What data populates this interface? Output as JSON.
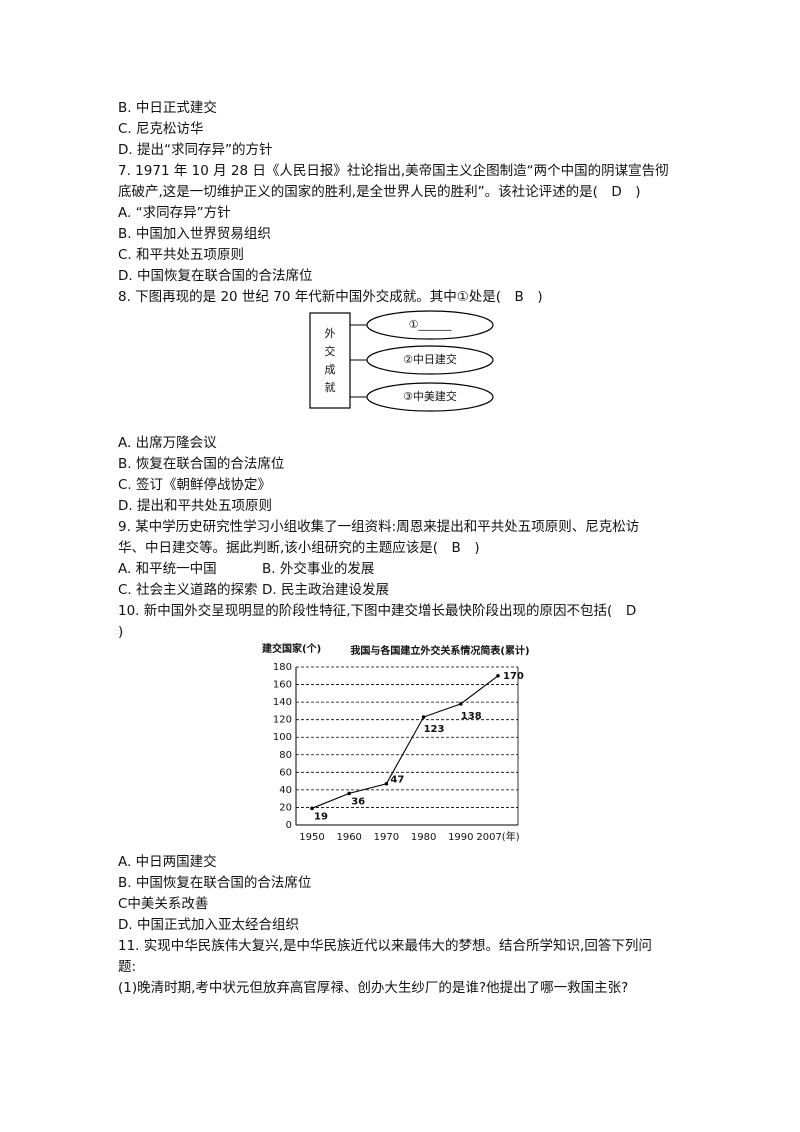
{
  "lines1": [
    [
      "B. 中日正式建交"
    ],
    [
      "C. 尼克松访华"
    ],
    [
      "D. 提出“求同存异”的方针"
    ],
    [
      "7. 1971 年 10 月 28 日《人民日报》社论指出,美帝国主义企图制造“两个中国的阴谋宣告彻"
    ],
    [
      "底破产,这是一切维护正义的国家的胜利,是全世界人民的胜利”。该社论评述的是(　D　)"
    ],
    [
      "A. “求同存异”方针"
    ],
    [
      "B. 中国加入世界贸易组织"
    ],
    [
      "C. 和平共处五项原则"
    ],
    [
      "D. 中国恢复在联合国的合法席位"
    ],
    [
      "8. 下图再现的是 20 世纪 70 年代新中国外交成就。其中①处是(　B　)"
    ]
  ],
  "diagram": {
    "root": "外交成就",
    "nodes": [
      "①______",
      "②中日建交",
      "③中美建交"
    ]
  },
  "lines2": [
    [
      "A. 出席万隆会议"
    ],
    [
      "B. 恢复在联合国的合法席位"
    ],
    [
      "C. 签订《朝鲜停战协定》"
    ],
    [
      "D. 提出和平共处五项原则"
    ],
    [
      "9. 某中学历史研究性学习小组收集了一组资料:周恩来提出和平共处五项原则、尼克松访"
    ],
    [
      "华、中日建交等。据此判断,该小组研究的主题应该是(　B　)"
    ],
    [
      "A. 和平统一中国",
      "B. 外交事业的发展"
    ],
    [
      "C. 社会主义道路的探索",
      "D. 民主政治建设发展"
    ],
    [
      "10. 新中国外交呈现明显的阶段性特征,下图中建交增长最快阶段出现的原因不包括(　D"
    ],
    [
      ")"
    ]
  ],
  "chart_data": {
    "type": "line",
    "title": "我国与各国建立外交关系情况简表(累计)",
    "y_label": "建交国家(个)",
    "categories": [
      "1950",
      "1960",
      "1970",
      "1980",
      "1990",
      "2007(年)"
    ],
    "values": [
      19,
      36,
      47,
      123,
      138,
      170
    ],
    "color": "#000000",
    "ylim": [
      0,
      180
    ],
    "yticks": [
      0,
      20,
      40,
      60,
      80,
      100,
      120,
      140,
      160,
      180
    ],
    "grid": true
  },
  "lines3": [
    [
      "A. 中日两国建交"
    ],
    [
      "B. 中国恢复在联合国的合法席位"
    ],
    [
      "C中美关系改善"
    ],
    [
      "D. 中国正式加入亚太经合组织"
    ],
    [
      "11. 实现中华民族伟大复兴,是中华民族近代以来最伟大的梦想。结合所学知识,回答下列问"
    ],
    [
      "题:"
    ],
    [
      "(1)晚清时期,考中状元但放弃高官厚禄、创办大生纱厂的是谁?他提出了哪一救国主张?"
    ]
  ]
}
